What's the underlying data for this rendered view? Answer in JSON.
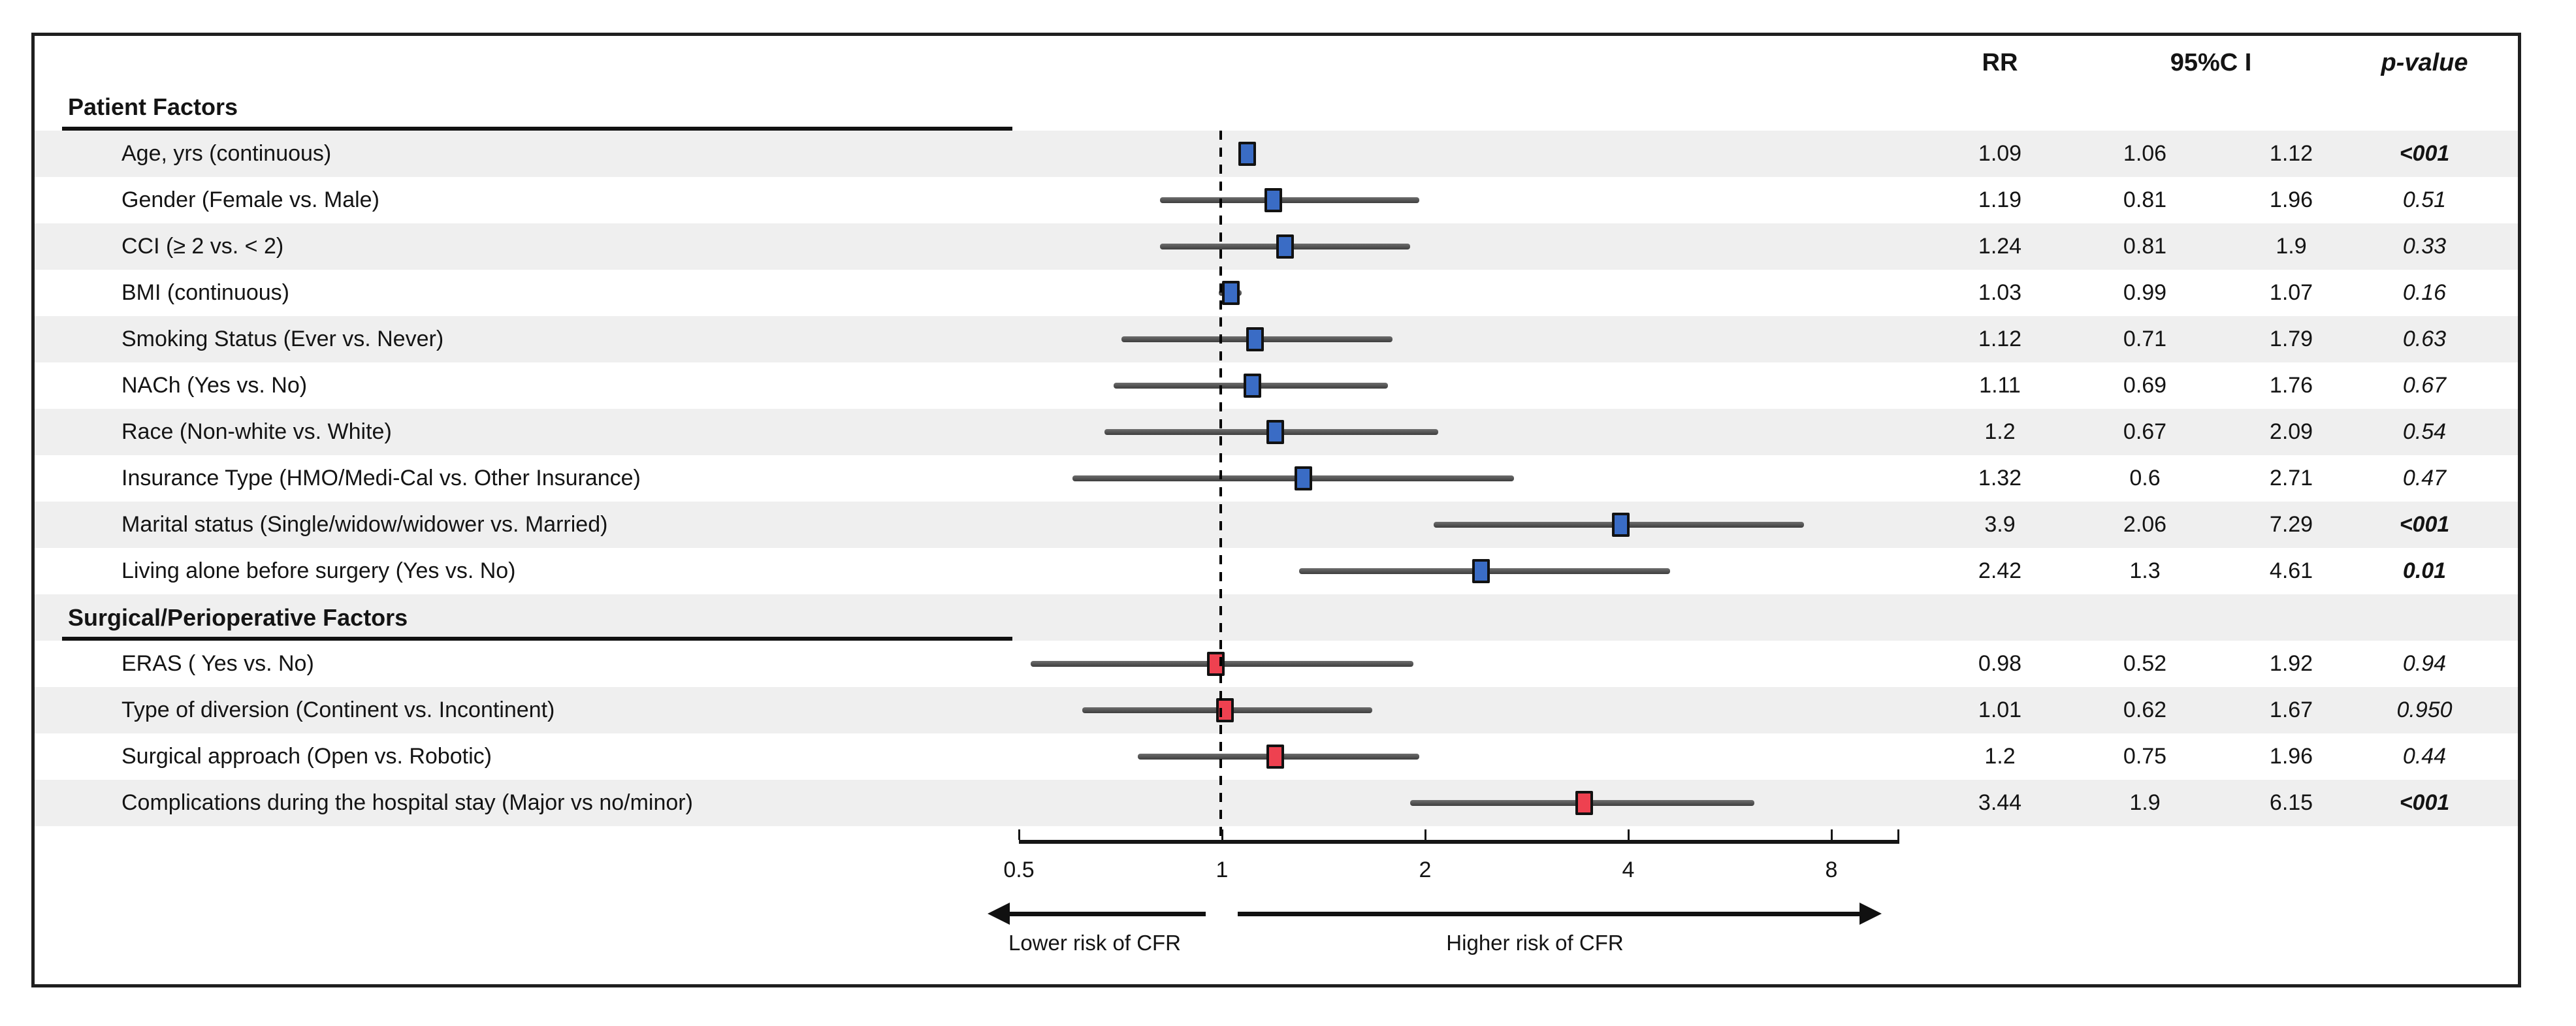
{
  "figure": {
    "description": "Forest plot of risk ratios for conversion/CFR risk factors"
  },
  "chart_data": {
    "type": "forest",
    "columns": {
      "rr": "RR",
      "ci": "95%C I",
      "p": "p-value"
    },
    "x_axis": {
      "scale": "log2",
      "ticks": [
        0.5,
        1,
        2,
        4,
        8
      ],
      "tick_labels": [
        "0.5",
        "1",
        "2",
        "4",
        "8"
      ],
      "reference_line": 1,
      "left_arrow_label": "Lower risk of CFR",
      "right_arrow_label": "Higher risk of CFR"
    },
    "sections": [
      {
        "title": "Patient Factors",
        "marker_color": "#3a6cc5",
        "rows": [
          {
            "label": "Age, yrs (continuous)",
            "rr": 1.09,
            "lo": 1.06,
            "hi": 1.12,
            "rr_text": "1.09",
            "lo_text": "1.06",
            "hi_text": "1.12",
            "p": "<001",
            "significant": true
          },
          {
            "label": "Gender (Female vs. Male)",
            "rr": 1.19,
            "lo": 0.81,
            "hi": 1.96,
            "rr_text": "1.19",
            "lo_text": "0.81",
            "hi_text": "1.96",
            "p": "0.51",
            "significant": false
          },
          {
            "label": "CCI (≥ 2 vs. < 2)",
            "rr": 1.24,
            "lo": 0.81,
            "hi": 1.9,
            "rr_text": "1.24",
            "lo_text": "0.81",
            "hi_text": "1.9",
            "p": "0.33",
            "significant": false
          },
          {
            "label": "BMI (continuous)",
            "rr": 1.03,
            "lo": 0.99,
            "hi": 1.07,
            "rr_text": "1.03",
            "lo_text": "0.99",
            "hi_text": "1.07",
            "p": "0.16",
            "significant": false
          },
          {
            "label": "Smoking Status (Ever vs. Never)",
            "rr": 1.12,
            "lo": 0.71,
            "hi": 1.79,
            "rr_text": "1.12",
            "lo_text": "0.71",
            "hi_text": "1.79",
            "p": "0.63",
            "significant": false
          },
          {
            "label": "NACh (Yes vs. No)",
            "rr": 1.11,
            "lo": 0.69,
            "hi": 1.76,
            "rr_text": "1.11",
            "lo_text": "0.69",
            "hi_text": "1.76",
            "p": "0.67",
            "significant": false
          },
          {
            "label": "Race (Non-white vs. White)",
            "rr": 1.2,
            "lo": 0.67,
            "hi": 2.09,
            "rr_text": "1.2",
            "lo_text": "0.67",
            "hi_text": "2.09",
            "p": "0.54",
            "significant": false
          },
          {
            "label": "Insurance Type (HMO/Medi-Cal vs. Other Insurance)",
            "rr": 1.32,
            "lo": 0.6,
            "hi": 2.71,
            "rr_text": "1.32",
            "lo_text": "0.6",
            "hi_text": "2.71",
            "p": "0.47",
            "significant": false
          },
          {
            "label": "Marital status (Single/widow/widower vs. Married)",
            "rr": 3.9,
            "lo": 2.06,
            "hi": 7.29,
            "rr_text": "3.9",
            "lo_text": "2.06",
            "hi_text": "7.29",
            "p": "<001",
            "significant": true
          },
          {
            "label": "Living alone before surgery (Yes vs. No)",
            "rr": 2.42,
            "lo": 1.3,
            "hi": 4.61,
            "rr_text": "2.42",
            "lo_text": "1.3",
            "hi_text": "4.61",
            "p": "0.01",
            "significant": true
          }
        ]
      },
      {
        "title": "Surgical/Perioperative Factors",
        "marker_color": "#ee4150",
        "rows": [
          {
            "label": "ERAS ( Yes vs. No)",
            "rr": 0.98,
            "lo": 0.52,
            "hi": 1.92,
            "rr_text": "0.98",
            "lo_text": "0.52",
            "hi_text": "1.92",
            "p": "0.94",
            "significant": false
          },
          {
            "label": "Type of diversion (Continent vs. Incontinent)",
            "rr": 1.01,
            "lo": 0.62,
            "hi": 1.67,
            "rr_text": "1.01",
            "lo_text": "0.62",
            "hi_text": "1.67",
            "p": "0.950",
            "significant": false
          },
          {
            "label": "Surgical approach (Open vs. Robotic)",
            "rr": 1.2,
            "lo": 0.75,
            "hi": 1.96,
            "rr_text": "1.2",
            "lo_text": "0.75",
            "hi_text": "1.96",
            "p": "0.44",
            "significant": false
          },
          {
            "label": "Complications during the hospital stay (Major vs no/minor)",
            "rr": 3.44,
            "lo": 1.9,
            "hi": 6.15,
            "rr_text": "3.44",
            "lo_text": "1.9",
            "hi_text": "6.15",
            "p": "<001",
            "significant": true
          }
        ]
      }
    ]
  },
  "colors": {
    "patient_marker": "#3a6cc5",
    "surgical_marker": "#ee4150",
    "ci_bar": "#4c4c4c",
    "stripe": "#efefef",
    "frame_border": "#1f1f1f",
    "text": "#141414"
  }
}
